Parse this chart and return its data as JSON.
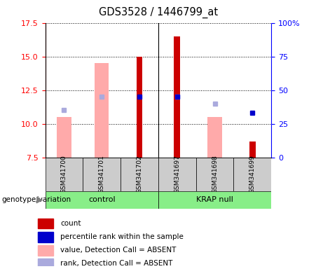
{
  "title": "GDS3528 / 1446799_at",
  "samples": [
    "GSM341700",
    "GSM341701",
    "GSM341702",
    "GSM341697",
    "GSM341698",
    "GSM341699"
  ],
  "ylim": [
    7.5,
    17.5
  ],
  "yticks_left": [
    7.5,
    10.0,
    12.5,
    15.0,
    17.5
  ],
  "yticks_right": [
    0,
    25,
    50,
    75,
    100
  ],
  "red_bars": [
    null,
    null,
    15.0,
    16.5,
    null,
    8.7
  ],
  "pink_bars": [
    10.5,
    14.5,
    null,
    null,
    10.5,
    null
  ],
  "blue_squares": [
    null,
    null,
    12.0,
    12.0,
    null,
    10.8
  ],
  "light_blue_squares": [
    11.0,
    12.0,
    null,
    12.0,
    11.5,
    null
  ],
  "bar_base": 7.5,
  "red_color": "#cc0000",
  "pink_color": "#ffaaaa",
  "blue_color": "#0000cc",
  "light_blue_color": "#aaaadd",
  "legend_labels": [
    "count",
    "percentile rank within the sample",
    "value, Detection Call = ABSENT",
    "rank, Detection Call = ABSENT"
  ],
  "legend_colors": [
    "#cc0000",
    "#0000cc",
    "#ffaaaa",
    "#aaaadd"
  ]
}
